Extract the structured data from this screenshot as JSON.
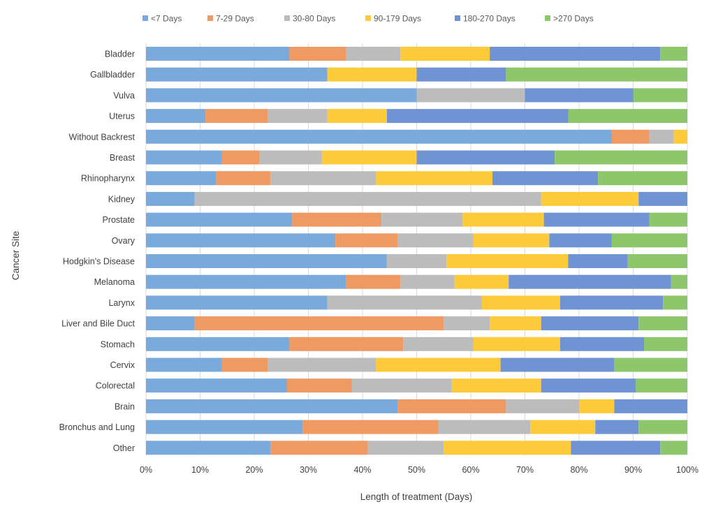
{
  "chart_data": {
    "type": "bar",
    "orientation": "horizontal",
    "stacked": "percent",
    "title": "",
    "xlabel": "Length of treatment (Days)",
    "ylabel": "Cancer Site",
    "xlim": [
      0,
      100
    ],
    "x_ticks": [
      "0%",
      "10%",
      "20%",
      "30%",
      "40%",
      "50%",
      "60%",
      "70%",
      "80%",
      "90%",
      "100%"
    ],
    "grid": true,
    "legend_position": "top",
    "categories": [
      "Bladder",
      "Gallbladder",
      "Vulva",
      "Uterus",
      "Without Backrest",
      "Breast",
      "Rhinopharynx",
      "Kidney",
      "Prostate",
      "Ovary",
      "Hodgkin's Disease",
      "Melanoma",
      "Larynx",
      "Liver and Bile Duct",
      "Stomach",
      "Cervix",
      "Colorectal",
      "Brain",
      "Bronchus and Lung",
      "Other"
    ],
    "series": [
      {
        "name": "<7 Days",
        "color": "#7aaadc",
        "values": [
          26.5,
          33.5,
          50,
          11,
          86,
          14,
          13,
          9,
          27,
          35,
          44.5,
          37,
          33.5,
          9,
          26.5,
          14,
          26,
          46.5,
          29,
          23
        ]
      },
      {
        "name": "7-29 Days",
        "color": "#ef9a62",
        "values": [
          10.5,
          0,
          0,
          11.5,
          7,
          7,
          10,
          0,
          16.5,
          11.5,
          0,
          10,
          0,
          46,
          21,
          8.5,
          12,
          20,
          25,
          18
        ]
      },
      {
        "name": "30-80 Days",
        "color": "#bcbcbc",
        "values": [
          10,
          0,
          20,
          11,
          4.5,
          11.5,
          19.5,
          64,
          15,
          14,
          11,
          10,
          28.5,
          8.5,
          13,
          20,
          18.5,
          13.5,
          17,
          14
        ]
      },
      {
        "name": "90-179 Days",
        "color": "#fdcb3a",
        "values": [
          16.5,
          16.5,
          0,
          11,
          2.5,
          17.5,
          21.5,
          18,
          15,
          14,
          22.5,
          10,
          14.5,
          9.5,
          16,
          23,
          16.5,
          6.5,
          12,
          23.5
        ]
      },
      {
        "name": "180-270 Days",
        "color": "#6f93d3",
        "values": [
          31.5,
          16.5,
          20,
          33.5,
          0,
          25.5,
          19.5,
          9,
          19.5,
          11.5,
          11,
          30,
          19,
          18,
          15.5,
          21,
          17.5,
          13.5,
          8,
          16.5
        ]
      },
      {
        "name": ">270 Days",
        "color": "#8ec66c",
        "values": [
          5,
          33.5,
          10,
          22,
          0,
          24.5,
          16.5,
          0,
          7,
          14,
          11,
          3,
          4.5,
          9,
          8,
          13.5,
          9.5,
          0,
          9,
          5
        ]
      }
    ]
  }
}
